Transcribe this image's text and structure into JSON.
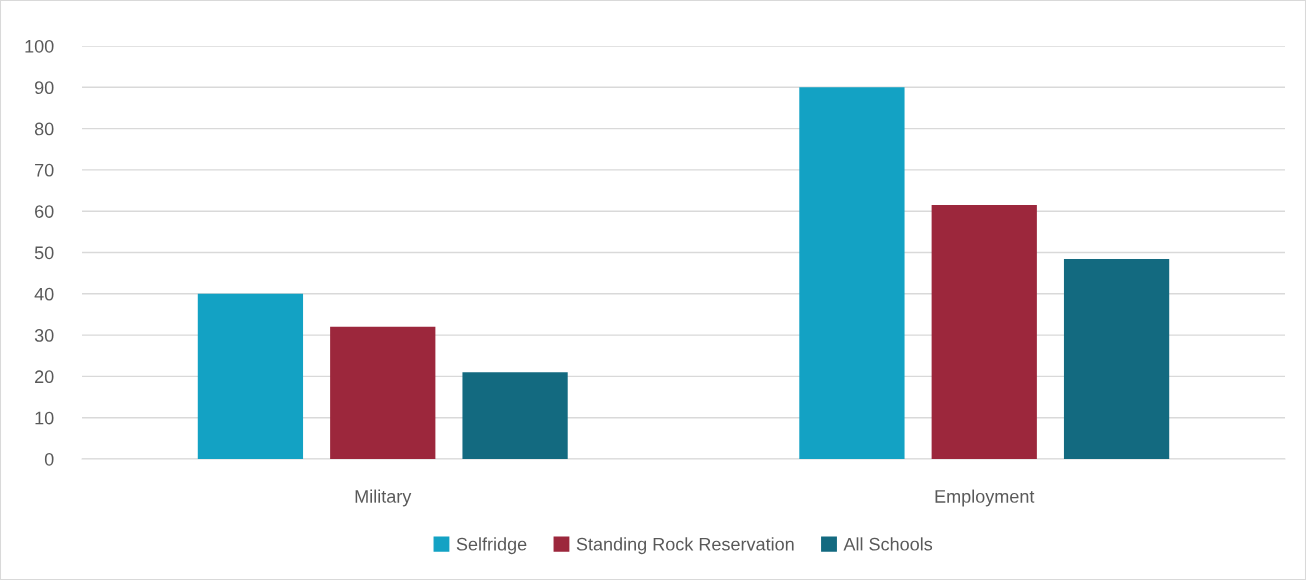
{
  "chart_data": {
    "type": "bar",
    "categories": [
      "Military",
      "Employment"
    ],
    "series": [
      {
        "name": "Selfridge",
        "color": "#13a2c4",
        "values": [
          40,
          90
        ]
      },
      {
        "name": "Standing Rock Reservation",
        "color": "#9c273c",
        "values": [
          32,
          61.5
        ]
      },
      {
        "name": "All Schools",
        "color": "#136a80",
        "values": [
          21,
          48.4
        ]
      }
    ],
    "ylim": [
      0,
      100
    ],
    "yticks": [
      0,
      10,
      20,
      30,
      40,
      50,
      60,
      70,
      80,
      90,
      100
    ],
    "grid": "y",
    "legend": "bottom"
  }
}
